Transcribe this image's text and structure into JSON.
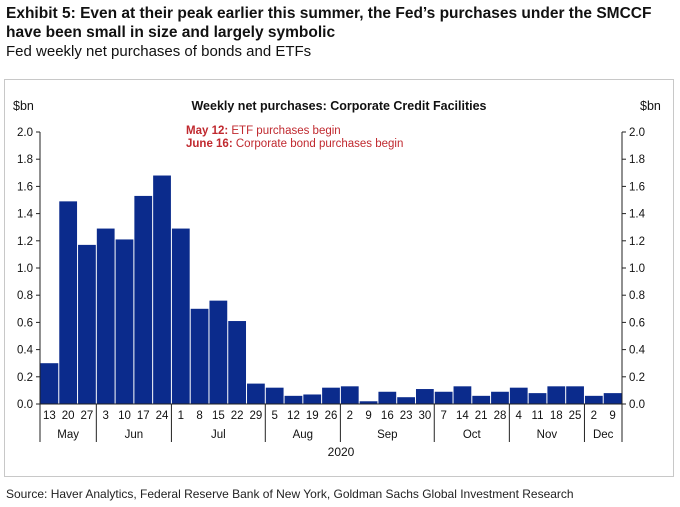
{
  "header": {
    "title": "Exhibit 5: Even at their peak earlier this summer, the Fed’s purchases under the SMCCF have been small in size and largely symbolic",
    "subtitle": "Fed weekly net purchases of bonds and ETFs"
  },
  "footer": {
    "source": "Source: Haver Analytics, Federal Reserve Bank of New York, Goldman Sachs Global Investment Research"
  },
  "chart_data": {
    "type": "bar",
    "title": "Weekly net purchases: Corporate Credit Facilities",
    "y_unit_left": "$bn",
    "y_unit_right": "$bn",
    "ylim": [
      0,
      2.0
    ],
    "yticks": [
      "0.0",
      "0.2",
      "0.4",
      "0.6",
      "0.8",
      "1.0",
      "1.2",
      "1.4",
      "1.6",
      "1.8",
      "2.0"
    ],
    "bar_color": "#0b2b8c",
    "grid": false,
    "legend": "none",
    "categories": [
      "13",
      "20",
      "27",
      "3",
      "10",
      "17",
      "24",
      "1",
      "8",
      "15",
      "22",
      "29",
      "5",
      "12",
      "19",
      "26",
      "2",
      "9",
      "16",
      "23",
      "30",
      "7",
      "14",
      "21",
      "28",
      "4",
      "11",
      "18",
      "25",
      "2",
      "9"
    ],
    "values": [
      0.3,
      1.49,
      1.17,
      1.29,
      1.21,
      1.53,
      1.68,
      1.29,
      0.7,
      0.76,
      0.61,
      0.15,
      0.12,
      0.06,
      0.07,
      0.12,
      0.13,
      0.02,
      0.09,
      0.05,
      0.11,
      0.09,
      0.13,
      0.06,
      0.09,
      0.12,
      0.08,
      0.13,
      0.13,
      0.06,
      0.08
    ],
    "months": [
      {
        "label": "May",
        "start": 0,
        "end": 2
      },
      {
        "label": "Jun",
        "start": 3,
        "end": 6
      },
      {
        "label": "Jul",
        "start": 7,
        "end": 11
      },
      {
        "label": "Aug",
        "start": 12,
        "end": 15
      },
      {
        "label": "Sep",
        "start": 16,
        "end": 20
      },
      {
        "label": "Oct",
        "start": 21,
        "end": 24
      },
      {
        "label": "Nov",
        "start": 25,
        "end": 28
      },
      {
        "label": "Dec",
        "start": 29,
        "end": 30
      }
    ],
    "year_label": "2020",
    "annotations": [
      {
        "date": "May 12:",
        "text": " ETF purchases begin",
        "color": "#c0292f"
      },
      {
        "date": "June 16:",
        "text": " Corporate bond purchases begin",
        "color": "#c0292f"
      }
    ]
  }
}
